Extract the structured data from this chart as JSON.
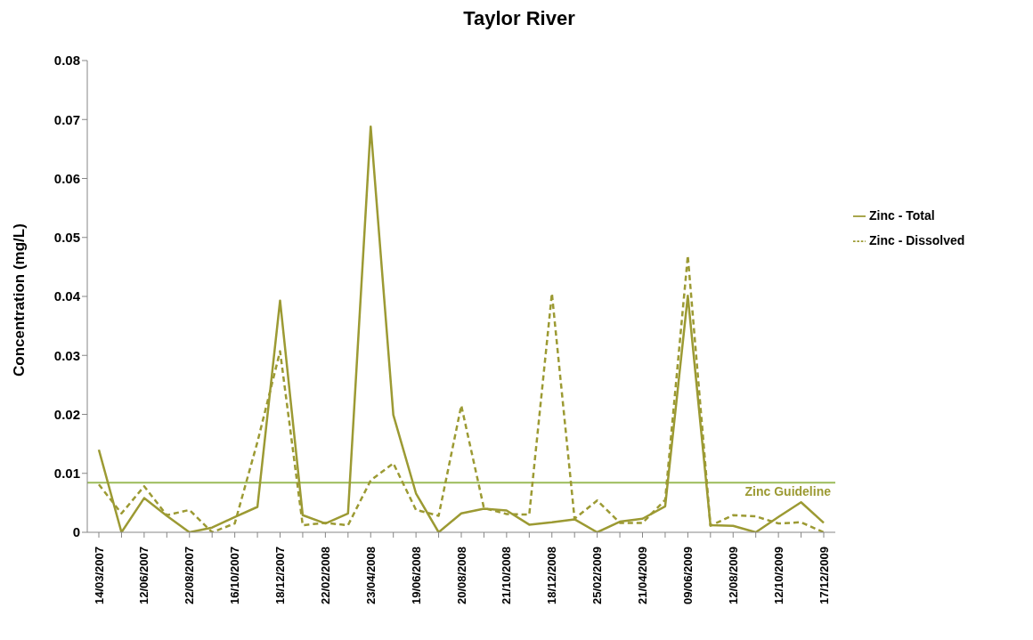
{
  "chart_data": {
    "type": "line",
    "title": "Taylor River",
    "ylabel": "Concentration (mg/L)",
    "categories": [
      "14/03/2007",
      null,
      "12/06/2007",
      null,
      "22/08/2007",
      null,
      "16/10/2007",
      null,
      "18/12/2007",
      null,
      "22/02/2008",
      null,
      "23/04/2008",
      null,
      "19/06/2008",
      null,
      "20/08/2008",
      null,
      "21/10/2008",
      null,
      "18/12/2008",
      null,
      "25/02/2009",
      null,
      "21/04/2009",
      null,
      "09/06/2009",
      null,
      "12/08/2009",
      null,
      "12/10/2009",
      null,
      "17/12/2009"
    ],
    "series": [
      {
        "name": "Zinc - Total",
        "color": "#9c9a33",
        "line_style": "solid",
        "values": [
          0.014,
          0,
          0.0058,
          0.0028,
          0,
          0.0008,
          0.0026,
          0.0043,
          0.0393,
          0.0029,
          0.0015,
          0.0032,
          0.0688,
          0.0199,
          0.0066,
          0,
          0.0032,
          0.004,
          0.0037,
          0.0013,
          0.0017,
          0.0022,
          0,
          0.0018,
          0.0023,
          0.0044,
          0.0401,
          0.0012,
          0.0011,
          0,
          0.0026,
          0.0051,
          0.0016
        ]
      },
      {
        "name": "Zinc - Dissolved",
        "color": "#9c9a33",
        "line_style": "dashed",
        "values": [
          0.0081,
          0.0032,
          0.0078,
          0.0029,
          0.0038,
          0,
          0.0015,
          0.0153,
          0.0307,
          0.0012,
          0.0016,
          0.0012,
          0.0088,
          0.0117,
          0.0038,
          0.0028,
          0.0215,
          0.0041,
          0.0031,
          0.003,
          0.0405,
          0.0023,
          0.0054,
          0.0016,
          0.0016,
          0.0055,
          0.0469,
          0.0011,
          0.0029,
          0.0027,
          0.0015,
          0.0017,
          0
        ]
      }
    ],
    "ylim": [
      0,
      0.08
    ],
    "yticks": [
      0,
      0.01,
      0.02,
      0.03,
      0.04,
      0.05,
      0.06,
      0.07,
      0.08
    ],
    "ref_lines": [
      {
        "axis": "y",
        "value": 0.0084,
        "label": "Zinc Guideline",
        "color": "#9bbb59"
      }
    ],
    "grid": false,
    "legend": "right",
    "marker": "none"
  }
}
